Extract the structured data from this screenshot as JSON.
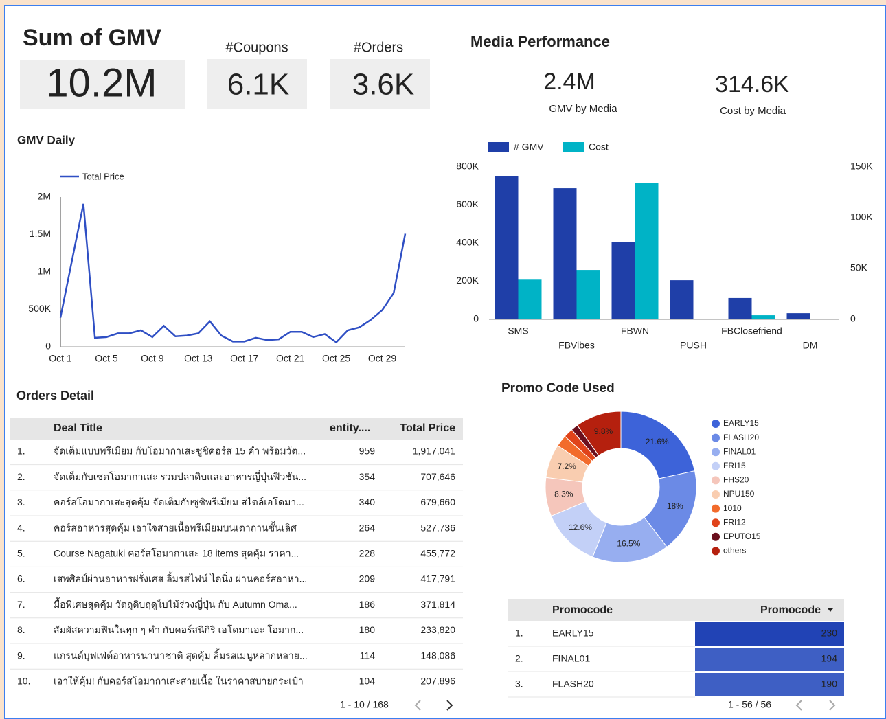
{
  "scorecards": [
    {
      "label": "Sum of GMV",
      "value": "10.2M"
    },
    {
      "label": "#Coupons",
      "value": "6.1K"
    },
    {
      "label": "#Orders",
      "value": "3.6K"
    }
  ],
  "media": {
    "title": "Media Performance",
    "metrics": [
      {
        "value": "2.4M",
        "label": "GMV by Media"
      },
      {
        "value": "314.6K",
        "label": "Cost by Media"
      }
    ]
  },
  "chart_data": [
    {
      "type": "line",
      "title": "GMV Daily",
      "categories": [
        "Oct 1",
        null,
        null,
        null,
        "Oct 5",
        null,
        null,
        null,
        "Oct 9",
        null,
        null,
        null,
        "Oct 13",
        null,
        null,
        null,
        "Oct 17",
        null,
        null,
        null,
        "Oct 21",
        null,
        null,
        null,
        "Oct 25",
        null,
        null,
        null,
        "Oct 29",
        null,
        null
      ],
      "series": [
        {
          "name": "Total Price",
          "color": "#2f4fc4",
          "values": [
            390000,
            1150000,
            1910000,
            120000,
            130000,
            180000,
            180000,
            220000,
            130000,
            280000,
            140000,
            150000,
            180000,
            340000,
            150000,
            70000,
            70000,
            120000,
            90000,
            100000,
            200000,
            200000,
            130000,
            170000,
            60000,
            220000,
            260000,
            360000,
            490000,
            720000,
            1510000
          ]
        }
      ],
      "ylim": [
        0,
        2000000
      ],
      "yticks": [
        0,
        {
          "value": 500000,
          "label": "500K"
        },
        {
          "value": 1000000,
          "label": "1M"
        },
        {
          "value": 1500000,
          "label": "1.5M"
        },
        {
          "value": 2000000,
          "label": "2M"
        }
      ],
      "legend": "top-left"
    },
    {
      "type": "bar",
      "categories": [
        "SMS",
        "FBVibes",
        "FBWN",
        "PUSH",
        "FBClosefriend",
        "DM"
      ],
      "series": [
        {
          "name": "# GMV",
          "color": "#1f3fa8",
          "values": [
            750000,
            688000,
            407000,
            205000,
            112000,
            32000
          ]
        },
        {
          "name": "Cost",
          "color": "#00b3c6",
          "axis": "y2",
          "values": [
            39000,
            48600,
            133800,
            0,
            4000,
            0
          ]
        }
      ],
      "ylim": [
        0,
        800000
      ],
      "yticks": [
        0,
        {
          "value": 200000,
          "label": "200K"
        },
        {
          "value": 400000,
          "label": "400K"
        },
        {
          "value": 600000,
          "label": "600K"
        },
        {
          "value": 800000,
          "label": "800K"
        }
      ],
      "y2lim": [
        0,
        150000
      ],
      "y2ticks": [
        0,
        {
          "value": 50000,
          "label": "50K"
        },
        {
          "value": 100000,
          "label": "100K"
        },
        {
          "value": 150000,
          "label": "150K"
        }
      ],
      "legend": "top-left"
    },
    {
      "type": "pie",
      "title": "Promo Code Used",
      "categories": [
        "EARLY15",
        "FLASH20",
        "FINAL01",
        "FRI15",
        "FHS20",
        "NPU150",
        "1010",
        "FRI12",
        "EPUTO15",
        "others"
      ],
      "values": [
        21.6,
        18,
        16.5,
        12.6,
        8.3,
        7.2,
        2.5,
        2.0,
        1.5,
        9.8
      ],
      "value_labels": [
        "21.6%",
        "18%",
        "16.5%",
        "12.6%",
        "8.3%",
        "7.2%",
        null,
        null,
        null,
        "9.8%"
      ],
      "colors": [
        "#3d63d9",
        "#6b8ae6",
        "#97aef0",
        "#c3d0f7",
        "#f5c6bb",
        "#f9cdb0",
        "#f26b2c",
        "#e0431a",
        "#6a0f1d",
        "#b5200e"
      ],
      "legend": "right"
    }
  ],
  "orders_table": {
    "title": "Orders Detail",
    "columns": [
      "Deal Title",
      "entity....",
      "Total Price"
    ],
    "rows": [
      [
        "1.",
        "จัดเต็มแบบพรีเมียม กับโอมากาเสะซูชิคอร์ส 15 คำ พร้อมวัต...",
        959,
        "1,917,041"
      ],
      [
        "2.",
        "จัดเต็มกับเซตโอมากาเสะ รวมปลาดิบและอาหารญี่ปุ่นฟิวชัน...",
        354,
        "707,646"
      ],
      [
        "3.",
        "คอร์สโอมากาเสะสุดคุ้ม จัดเต็มกับซูชิพรีเมียม สไตล์เอโดมา...",
        340,
        "679,660"
      ],
      [
        "4.",
        "คอร์สอาหารสุดคุ้ม เอาใจสายเนื้อพรีเมียมบนเตาถ่านชั้นเลิศ",
        264,
        "527,736"
      ],
      [
        "5.",
        "Course Nagatuki คอร์สโอมากาเสะ 18 items สุดคุ้ม ราคา...",
        228,
        "455,772"
      ],
      [
        "6.",
        "เสพศิลป์ผ่านอาหารฝรั่งเศส ลิ้มรสไฟน์ ไดนิ่ง ผ่านคอร์สอาหา...",
        209,
        "417,791"
      ],
      [
        "7.",
        "มื้อพิเศษสุดคุ้ม วัตถุดิบฤดูใบไม้ร่วงญี่ปุ่น กับ Autumn Oma...",
        186,
        "371,814"
      ],
      [
        "8.",
        "สัมผัสความฟินในทุก ๆ คำ กับคอร์สนิกิริ เอโดมาเอะ โอมาก...",
        180,
        "233,820"
      ],
      [
        "9.",
        "แกรนด์บุฟเฟ่ต์อาหารนานาชาติ สุดคุ้ม ลิ้มรสเมนูหลากหลาย...",
        114,
        "148,086"
      ],
      [
        "10.",
        "เอาให้คุ้ม! กับคอร์สโอมากาเสะสายเนื้อ ในราคาสบายกระเป๋า",
        104,
        "207,896"
      ]
    ],
    "pagination": "1 - 10 / 168"
  },
  "promo_table": {
    "columns": [
      "Promocode",
      "Promocode"
    ],
    "rows": [
      [
        "1.",
        "EARLY15",
        230
      ],
      [
        "2.",
        "FINAL01",
        194
      ],
      [
        "3.",
        "FLASH20",
        190
      ]
    ],
    "pagination": "1 - 56 / 56"
  }
}
